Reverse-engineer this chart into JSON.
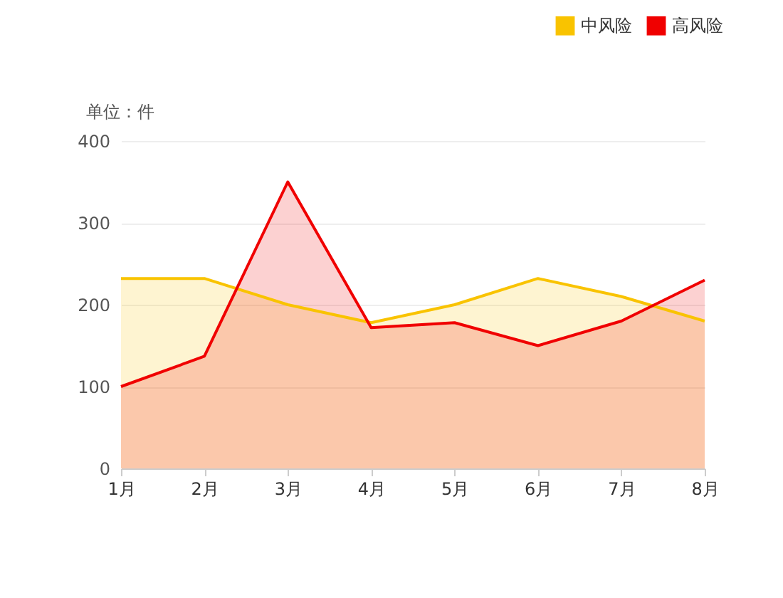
{
  "chart_data": {
    "type": "area",
    "ylabel": "单位：件",
    "categories": [
      "1月",
      "2月",
      "3月",
      "4月",
      "5月",
      "6月",
      "7月",
      "8月"
    ],
    "series": [
      {
        "name": "中风险",
        "color": "#f9c300",
        "values": [
          232,
          232,
          200,
          178,
          200,
          232,
          210,
          180
        ]
      },
      {
        "name": "高风险",
        "color": "#f00000",
        "values": [
          100,
          137,
          350,
          172,
          178,
          150,
          180,
          230
        ]
      }
    ],
    "ylim": [
      0,
      400
    ],
    "yticks": [
      0,
      100,
      200,
      300,
      400
    ],
    "grid": "y",
    "legend": "top right"
  }
}
